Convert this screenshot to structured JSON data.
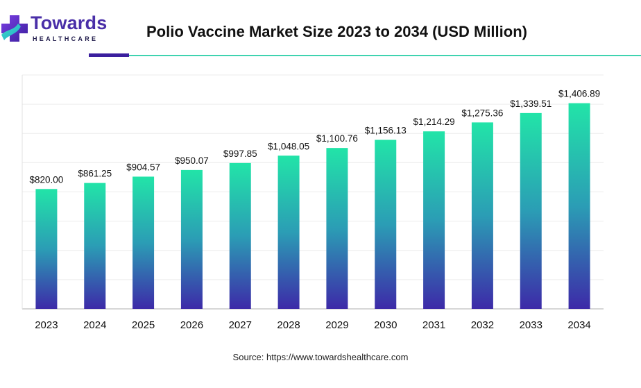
{
  "header": {
    "brand_name": "Towards",
    "brand_sub": "HEALTHCARE",
    "title": "Polio Vaccine Market Size 2023 to 2034 (USD Million)"
  },
  "colors": {
    "bar_top": "#22e4a8",
    "bar_mid": "#2b9db5",
    "bar_bottom": "#3d2aa8",
    "brand_purple": "#4a2fa8",
    "accent_teal": "#3fd3b0"
  },
  "chart_data": {
    "type": "bar",
    "title": "Polio Vaccine Market Size 2023 to 2034 (USD Million)",
    "xlabel": "",
    "ylabel": "",
    "categories": [
      "2023",
      "2024",
      "2025",
      "2026",
      "2027",
      "2028",
      "2029",
      "2030",
      "2031",
      "2032",
      "2033",
      "2034"
    ],
    "values": [
      820.0,
      861.25,
      904.57,
      950.07,
      997.85,
      1048.05,
      1100.76,
      1156.13,
      1214.29,
      1275.36,
      1339.51,
      1406.89
    ],
    "data_labels": [
      "$820.00",
      "$861.25",
      "$904.57",
      "$950.07",
      "$997.85",
      "$1,048.05",
      "$1,100.76",
      "$1,156.13",
      "$1,214.29",
      "$1,275.36",
      "$1,339.51",
      "$1,406.89"
    ],
    "ylim": [
      0,
      1600
    ],
    "grid": true,
    "legend": "none"
  },
  "footer": {
    "source": "Source: https://www.towardshealthcare.com"
  }
}
